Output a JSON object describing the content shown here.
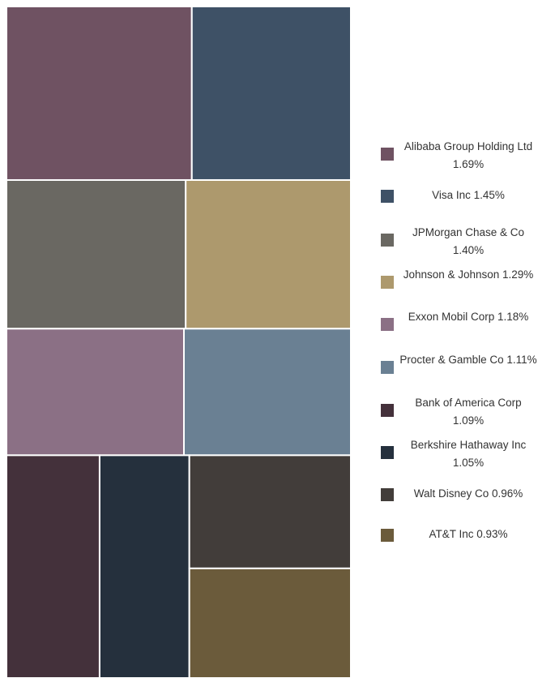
{
  "chart_data": {
    "type": "treemap",
    "items": [
      {
        "name": "Alibaba Group Holding Ltd",
        "label": "1.69%",
        "value": 1.69,
        "color": "#6f5262"
      },
      {
        "name": "Visa Inc",
        "label": "1.45%",
        "value": 1.45,
        "color": "#3e5166"
      },
      {
        "name": "JPMorgan Chase & Co",
        "label": "1.40%",
        "value": 1.4,
        "color": "#6a6862"
      },
      {
        "name": "Johnson & Johnson",
        "label": "1.29%",
        "value": 1.29,
        "color": "#ad996d"
      },
      {
        "name": "Exxon Mobil Corp",
        "label": "1.18%",
        "value": 1.18,
        "color": "#8b7085"
      },
      {
        "name": "Procter & Gamble Co",
        "label": "1.11%",
        "value": 1.11,
        "color": "#6a8093"
      },
      {
        "name": "Bank of America Corp",
        "label": "1.09%",
        "value": 1.09,
        "color": "#44313b"
      },
      {
        "name": "Berkshire Hathaway Inc",
        "label": "1.05%",
        "value": 1.05,
        "color": "#25303d"
      },
      {
        "name": "Walt Disney Co",
        "label": "0.96%",
        "value": 0.96,
        "color": "#423d3a"
      },
      {
        "name": "AT&T Inc",
        "label": "0.93%",
        "value": 0.93,
        "color": "#6b5b3b"
      }
    ],
    "legend_position": "right"
  }
}
